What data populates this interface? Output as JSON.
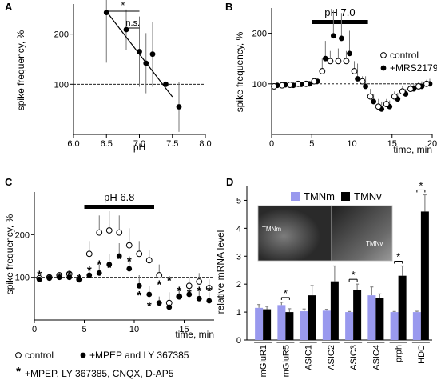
{
  "figure": {
    "panel_letters": [
      "A",
      "B",
      "C",
      "D"
    ]
  },
  "chart_data": [
    {
      "panel": "A",
      "type": "scatter",
      "xlabel": "pH",
      "ylabel": "spike frequency, %",
      "xlim": [
        6.0,
        8.0
      ],
      "ylim": [
        0,
        260
      ],
      "xticks": [
        "6.0",
        "6.5",
        "7.0",
        "7.5",
        "8.0"
      ],
      "yticks": [
        "100",
        "200"
      ],
      "reference_line": 100,
      "points": [
        {
          "x": 6.5,
          "y": 243,
          "err": 100
        },
        {
          "x": 6.8,
          "y": 209,
          "err": 40
        },
        {
          "x": 7.0,
          "y": 165,
          "err": 70
        },
        {
          "x": 7.1,
          "y": 142,
          "err": 60
        },
        {
          "x": 7.2,
          "y": 160,
          "err": 65
        },
        {
          "x": 7.4,
          "y": 100,
          "err": 0
        },
        {
          "x": 7.6,
          "y": 55,
          "err": 50
        }
      ],
      "fit_line": {
        "x": [
          6.5,
          7.5
        ],
        "y": [
          245,
          75
        ]
      },
      "significance": [
        {
          "x1": 6.5,
          "x2": 7.0,
          "label": "*"
        },
        {
          "x1": 6.8,
          "x2": 7.0,
          "label": "n.s."
        }
      ]
    },
    {
      "panel": "B",
      "type": "scatter",
      "xlabel": "time, min",
      "ylabel": "spike frequency, %",
      "xlim": [
        0,
        20
      ],
      "ylim": [
        0,
        250
      ],
      "xticks": [
        "0",
        "5",
        "10",
        "15",
        "20"
      ],
      "yticks": [
        "100",
        "200"
      ],
      "reference_line": 100,
      "bar_label": "pH 7.0",
      "bar_range": [
        5,
        12
      ],
      "series": [
        {
          "name": "control",
          "marker": "open-circle",
          "x": [
            0.5,
            1.5,
            2.5,
            3.5,
            4.5,
            5.5,
            6.5,
            7.5,
            8.5,
            9.5,
            10.5,
            11.5,
            12.5,
            13.5,
            14.5,
            15.5,
            16.5,
            17.5,
            18.5,
            19.5
          ],
          "y": [
            95,
            97,
            98,
            100,
            100,
            105,
            125,
            145,
            145,
            145,
            125,
            105,
            75,
            55,
            60,
            75,
            85,
            90,
            95,
            100
          ],
          "err": [
            0,
            0,
            0,
            0,
            0,
            0,
            25,
            20,
            25,
            20,
            20,
            10,
            15,
            15,
            10,
            10,
            10,
            10,
            8,
            8
          ]
        },
        {
          "name": "+MRS2179",
          "marker": "filled-circle",
          "x": [
            0.5,
            1.5,
            2.5,
            3.5,
            4.5,
            5.5,
            6.5,
            7.5,
            8.5,
            9.5,
            10.5,
            11.5,
            12.5,
            13.5,
            14.5,
            15.5,
            16.5,
            17.5,
            18.5,
            19.5
          ],
          "y": [
            97,
            98,
            97,
            99,
            100,
            105,
            150,
            195,
            190,
            160,
            110,
            95,
            65,
            50,
            55,
            70,
            80,
            90,
            95,
            100
          ],
          "err": [
            0,
            0,
            0,
            0,
            0,
            0,
            35,
            50,
            50,
            45,
            30,
            20,
            15,
            15,
            12,
            12,
            10,
            10,
            10,
            10
          ]
        }
      ]
    },
    {
      "panel": "C",
      "type": "scatter",
      "xlabel": "time, min",
      "ylabel": "spike frequency, %",
      "xlim": [
        0,
        18
      ],
      "ylim": [
        0,
        300
      ],
      "xticks": [
        "0",
        "5",
        "10",
        "15"
      ],
      "yticks": [
        "100",
        "200"
      ],
      "reference_line": 100,
      "bar_label": "pH 6.8",
      "bar_range": [
        5,
        12
      ],
      "series": [
        {
          "name": "control",
          "marker": "open-circle",
          "x": [
            0.5,
            1.5,
            2.5,
            3.5,
            4.5,
            5.5,
            6.5,
            7.5,
            8.5,
            9.5,
            10.5,
            11.5,
            12.5,
            13.5,
            14.5,
            15.5,
            16.5,
            17.5
          ],
          "y": [
            98,
            100,
            105,
            108,
            95,
            155,
            205,
            210,
            205,
            175,
            155,
            140,
            105,
            40,
            55,
            80,
            90,
            75
          ],
          "err": [
            0,
            0,
            0,
            0,
            0,
            30,
            40,
            45,
            40,
            40,
            30,
            25,
            25,
            25,
            20,
            20,
            20,
            20
          ]
        },
        {
          "name": "+MPEP and LY 367385",
          "marker": "filled-circle",
          "x": [
            0.5,
            1.5,
            2.5,
            3.5,
            4.5,
            5.5,
            6.5,
            7.5,
            8.5,
            9.5,
            10.5,
            11.5,
            12.5,
            13.5,
            14.5,
            15.5,
            16.5,
            17.5
          ],
          "y": [
            95,
            98,
            100,
            100,
            95,
            105,
            110,
            130,
            150,
            120,
            80,
            60,
            40,
            30,
            55,
            60,
            50,
            45
          ],
          "err": [
            0,
            0,
            0,
            0,
            0,
            15,
            20,
            25,
            30,
            30,
            25,
            20,
            15,
            15,
            20,
            20,
            20,
            20
          ]
        },
        {
          "name": "+MPEP, LY 367385, CNQX, D-AP5",
          "marker": "asterisk",
          "x": [
            0.5,
            1.5,
            2.5,
            3.5,
            4.5,
            5.5,
            6.5,
            7.5,
            8.5,
            9.5,
            10.5,
            11.5,
            12.5,
            13.5,
            14.5,
            15.5,
            16.5,
            17.5
          ],
          "y": [
            108,
            100,
            102,
            108,
            100,
            118,
            132,
            125,
            145,
            140,
            60,
            35,
            85,
            95,
            70,
            65,
            70,
            70
          ],
          "err": [
            0,
            0,
            0,
            0,
            0,
            0,
            0,
            0,
            0,
            0,
            0,
            0,
            0,
            0,
            0,
            0,
            0,
            0
          ]
        }
      ]
    },
    {
      "panel": "D",
      "type": "bar",
      "ylabel": "relative mRNA level",
      "ylim": [
        0,
        5.5
      ],
      "yticks": [
        "0",
        "1",
        "2",
        "3",
        "4",
        "5"
      ],
      "categories": [
        "mGluR1",
        "mGluR5",
        "ASIC1",
        "ASIC2",
        "ASIC3",
        "ASIC4",
        "prph",
        "HDC"
      ],
      "series": [
        {
          "name": "TMNm",
          "color": "#9999ee",
          "values": [
            1.15,
            1.25,
            1.03,
            1.05,
            1.0,
            1.6,
            1.0,
            1.0
          ],
          "err": [
            0.12,
            0.1,
            0.08,
            0.05,
            0.02,
            0.3,
            0.02,
            0.03
          ]
        },
        {
          "name": "TMNv",
          "color": "#000000",
          "values": [
            1.1,
            1.0,
            1.6,
            2.1,
            1.8,
            1.5,
            2.3,
            4.6
          ],
          "err": [
            0.1,
            0.12,
            0.35,
            0.55,
            0.2,
            0.15,
            0.35,
            0.6
          ]
        }
      ],
      "significance": [
        {
          "category": "mGluR5",
          "label": "*"
        },
        {
          "category": "ASIC3",
          "label": "*"
        },
        {
          "category": "prph",
          "label": "*"
        },
        {
          "category": "HDC",
          "label": "*"
        }
      ],
      "inset_labels": [
        "TMNm",
        "TMNv"
      ]
    }
  ]
}
